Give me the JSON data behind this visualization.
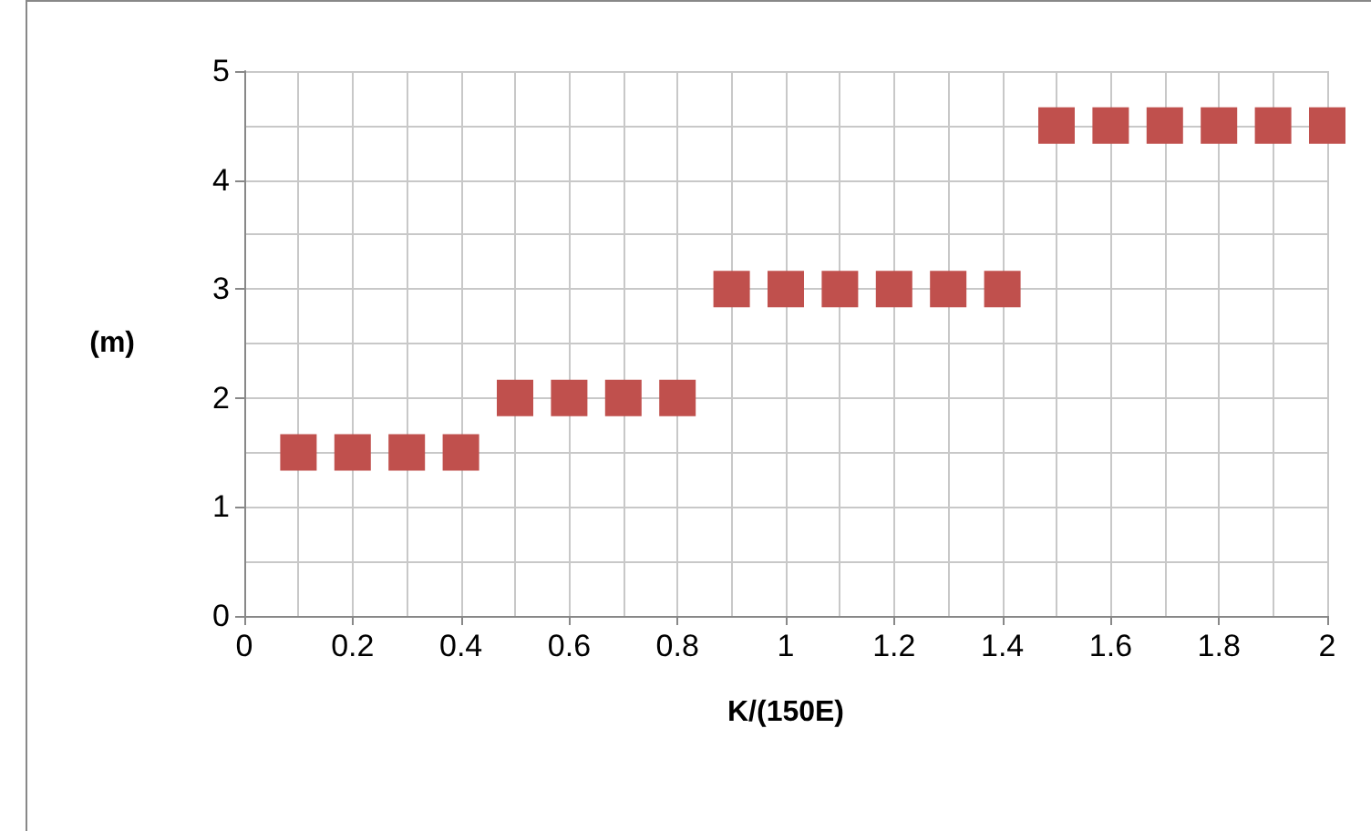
{
  "chart_data": {
    "type": "scatter",
    "xlabel": "K/(150E)",
    "ylabel": "(m)",
    "x": [
      0.1,
      0.2,
      0.3,
      0.4,
      0.5,
      0.6,
      0.7,
      0.8,
      0.9,
      1.0,
      1.1,
      1.2,
      1.3,
      1.4,
      1.5,
      1.6,
      1.7,
      1.8,
      1.9,
      2.0
    ],
    "series": [
      {
        "color": "#c0504d",
        "values": [
          1.5,
          1.5,
          1.5,
          1.5,
          2,
          2,
          2,
          2,
          3,
          3,
          3,
          3,
          3,
          3,
          4.5,
          4.5,
          4.5,
          4.5,
          4.5,
          4.5
        ]
      }
    ],
    "xlim": [
      0,
      2
    ],
    "xticks": [
      0,
      0.2,
      0.4,
      0.6,
      0.8,
      1,
      1.2,
      1.4,
      1.6,
      1.8,
      2
    ],
    "ylim": [
      0,
      5
    ],
    "yticks": [
      0,
      1,
      2,
      3,
      4,
      5
    ],
    "grid": true,
    "marker": "square"
  }
}
